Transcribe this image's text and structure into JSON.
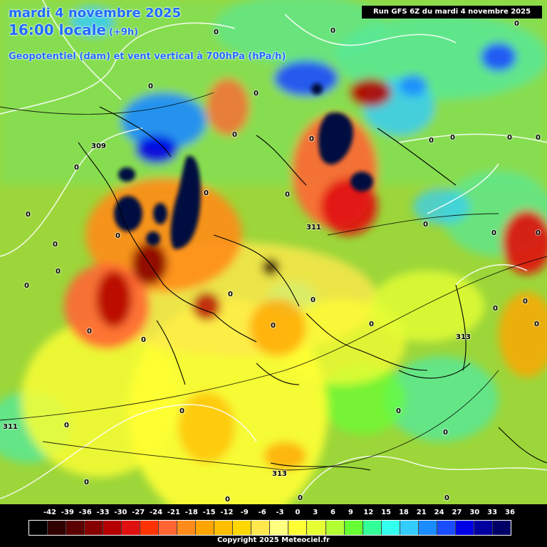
{
  "header": {
    "date_line": "mardi 4 novembre 2025",
    "time_line": "16:00 locale",
    "time_offset": "(+9h)",
    "parameter_line": "Geopotentiel (dam) et vent vertical à 700hPa (hPa/h)",
    "run_info": "Run GFS 6Z du mardi 4 novembre 2025"
  },
  "map": {
    "background_color": "#9cd63a",
    "contour_labels": [
      "0",
      "309",
      "311",
      "313"
    ],
    "label_list": [
      {
        "text": "0"
      },
      {
        "text": "0"
      },
      {
        "text": "0"
      },
      {
        "text": "0"
      },
      {
        "text": "0"
      },
      {
        "text": "309"
      },
      {
        "text": "0"
      },
      {
        "text": "0"
      },
      {
        "text": "0"
      },
      {
        "text": "0"
      },
      {
        "text": "0"
      },
      {
        "text": "0"
      },
      {
        "text": "0"
      },
      {
        "text": "0"
      },
      {
        "text": "0"
      },
      {
        "text": "0"
      },
      {
        "text": "311"
      },
      {
        "text": "0"
      },
      {
        "text": "0"
      },
      {
        "text": "0"
      },
      {
        "text": "0"
      },
      {
        "text": "0"
      },
      {
        "text": "0"
      },
      {
        "text": "0"
      },
      {
        "text": "0"
      },
      {
        "text": "0"
      },
      {
        "text": "0"
      },
      {
        "text": "0"
      },
      {
        "text": "0"
      },
      {
        "text": "313"
      },
      {
        "text": "0"
      },
      {
        "text": "0"
      },
      {
        "text": "0"
      },
      {
        "text": "0"
      },
      {
        "text": "311"
      },
      {
        "text": "0"
      },
      {
        "text": "0"
      },
      {
        "text": "0"
      },
      {
        "text": "313"
      },
      {
        "text": "0"
      },
      {
        "text": "0"
      },
      {
        "text": "0"
      },
      {
        "text": "0"
      },
      {
        "text": "0"
      },
      {
        "text": "0"
      }
    ]
  },
  "legend": {
    "ticks": [
      "-42",
      "-39",
      "-36",
      "-33",
      "-30",
      "-27",
      "-24",
      "-21",
      "-18",
      "-15",
      "-12",
      "-9",
      "-6",
      "-3",
      "0",
      "3",
      "6",
      "9",
      "12",
      "15",
      "18",
      "21",
      "24",
      "27",
      "30",
      "33",
      "36"
    ],
    "colors": [
      "#000000",
      "#300000",
      "#5a0000",
      "#870000",
      "#b40000",
      "#e01010",
      "#ff3300",
      "#ff6633",
      "#ff8c1a",
      "#ffa500",
      "#ffbf00",
      "#ffd700",
      "#ffe84d",
      "#ffff80",
      "#ffff33",
      "#e6ff33",
      "#b3ff33",
      "#66ff33",
      "#33ff99",
      "#33ffee",
      "#33ccff",
      "#1a8cff",
      "#1a4dff",
      "#0000e6",
      "#0000a0",
      "#000066"
    ],
    "copyright": "Copyright 2025 Meteociel.fr"
  }
}
